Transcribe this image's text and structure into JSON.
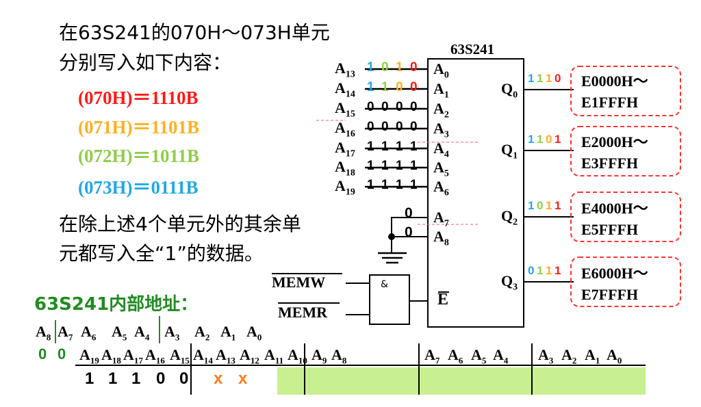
{
  "intro": {
    "line1": "在63S241的070H～073H单元",
    "line2": "分别写入如下内容："
  },
  "contents": [
    {
      "text": "(070H)＝1110B",
      "color": "#ff1a1a"
    },
    {
      "text": "(071H)＝1101B",
      "color": "#ffb020"
    },
    {
      "text": "(072H)＝1011B",
      "color": "#8fce4a"
    },
    {
      "text": "(073H)＝0111B",
      "color": "#20a8e8"
    }
  ],
  "note": {
    "line1": "在除上述4个单元外的其余单",
    "line2": "元都写入全“1”的数据。"
  },
  "chip": {
    "name": "63S241",
    "inputs": [
      {
        "addr": "A",
        "addr_sub": "13",
        "pin": "A",
        "pin_sub": "0",
        "bits": [
          "1",
          "0",
          "1",
          "0"
        ],
        "bit_colors": [
          "#20a8e8",
          "#8fce4a",
          "#ffb020",
          "#ff1a1a"
        ]
      },
      {
        "addr": "A",
        "addr_sub": "14",
        "pin": "A",
        "pin_sub": "1",
        "bits": [
          "1",
          "1",
          "0",
          "0"
        ],
        "bit_colors": [
          "#20a8e8",
          "#8fce4a",
          "#ffb020",
          "#ff1a1a"
        ]
      },
      {
        "addr": "A",
        "addr_sub": "15",
        "pin": "A",
        "pin_sub": "2",
        "bits": [
          "0",
          "0",
          "0",
          "0"
        ],
        "bit_colors": [
          "#000000",
          "#000000",
          "#000000",
          "#000000"
        ]
      },
      {
        "addr": "A",
        "addr_sub": "16",
        "pin": "A",
        "pin_sub": "3",
        "bits": [
          "0",
          "0",
          "0",
          "0"
        ],
        "bit_colors": [
          "#000000",
          "#000000",
          "#000000",
          "#000000"
        ]
      },
      {
        "addr": "A",
        "addr_sub": "17",
        "pin": "A",
        "pin_sub": "4",
        "bits": [
          "1",
          "1",
          "1",
          "1"
        ],
        "bit_colors": [
          "#000000",
          "#000000",
          "#000000",
          "#000000"
        ]
      },
      {
        "addr": "A",
        "addr_sub": "18",
        "pin": "A",
        "pin_sub": "5",
        "bits": [
          "1",
          "1",
          "1",
          "1"
        ],
        "bit_colors": [
          "#000000",
          "#000000",
          "#000000",
          "#000000"
        ]
      },
      {
        "addr": "A",
        "addr_sub": "19",
        "pin": "A",
        "pin_sub": "6",
        "bits": [
          "1",
          "1",
          "1",
          "1"
        ],
        "bit_colors": [
          "#000000",
          "#000000",
          "#000000",
          "#000000"
        ]
      }
    ],
    "grounded": [
      {
        "pin": "A",
        "pin_sub": "7",
        "bit": "0"
      },
      {
        "pin": "A",
        "pin_sub": "8",
        "bit": "0"
      }
    ],
    "enable_pin": "E",
    "gate_symbol": "&",
    "memw": "MEMW",
    "memr": "MEMR",
    "outputs": [
      {
        "pin": "Q",
        "pin_sub": "0",
        "bits": [
          "1",
          "1",
          "1",
          "0"
        ],
        "range1": "E0000H～",
        "range2": "E1FFFH"
      },
      {
        "pin": "Q",
        "pin_sub": "1",
        "bits": [
          "1",
          "1",
          "0",
          "1"
        ],
        "range1": "E2000H～",
        "range2": "E3FFFH"
      },
      {
        "pin": "Q",
        "pin_sub": "2",
        "bits": [
          "1",
          "0",
          "1",
          "1"
        ],
        "range1": "E4000H～",
        "range2": "E5FFFH"
      },
      {
        "pin": "Q",
        "pin_sub": "3",
        "bits": [
          "0",
          "1",
          "1",
          "1"
        ],
        "range1": "E6000H～",
        "range2": "E7FFFH"
      }
    ],
    "out_bit_colors": [
      "#20a8e8",
      "#8fce4a",
      "#ffb020",
      "#ff1a1a"
    ]
  },
  "internal": {
    "title": "63S241内部地址：",
    "labels": [
      {
        "t": "A",
        "s": "8"
      },
      {
        "t": "A",
        "s": "7"
      },
      {
        "t": "A",
        "s": "6"
      },
      {
        "t": "A",
        "s": "5"
      },
      {
        "t": "A",
        "s": "4"
      },
      {
        "t": "A",
        "s": "3"
      },
      {
        "t": "A",
        "s": "2"
      },
      {
        "t": "A",
        "s": "1"
      },
      {
        "t": "A",
        "s": "0"
      }
    ],
    "zeros": [
      "0",
      "0"
    ]
  },
  "address_bus": {
    "headers": [
      {
        "t": "A",
        "s": "19"
      },
      {
        "t": "A",
        "s": "18"
      },
      {
        "t": "A",
        "s": "17"
      },
      {
        "t": "A",
        "s": "16"
      },
      {
        "t": "A",
        "s": "15"
      },
      {
        "t": "A",
        "s": "14"
      },
      {
        "t": "A",
        "s": "13"
      },
      {
        "t": "A",
        "s": "12"
      },
      {
        "t": "A",
        "s": "11"
      },
      {
        "t": "A",
        "s": "10"
      },
      {
        "t": "A",
        "s": "9"
      },
      {
        "t": "A",
        "s": "8"
      },
      {
        "t": "A",
        "s": "7"
      },
      {
        "t": "A",
        "s": "6"
      },
      {
        "t": "A",
        "s": "5"
      },
      {
        "t": "A",
        "s": "4"
      },
      {
        "t": "A",
        "s": "3"
      },
      {
        "t": "A",
        "s": "2"
      },
      {
        "t": "A",
        "s": "1"
      },
      {
        "t": "A",
        "s": "0"
      }
    ],
    "values": [
      "1",
      "1",
      "1",
      "0",
      "0",
      "x",
      "x"
    ],
    "value_colors": [
      "#000000",
      "#000000",
      "#000000",
      "#000000",
      "#000000",
      "#ff7a1a",
      "#ff7a1a"
    ],
    "fill_color": "#c8f090"
  }
}
